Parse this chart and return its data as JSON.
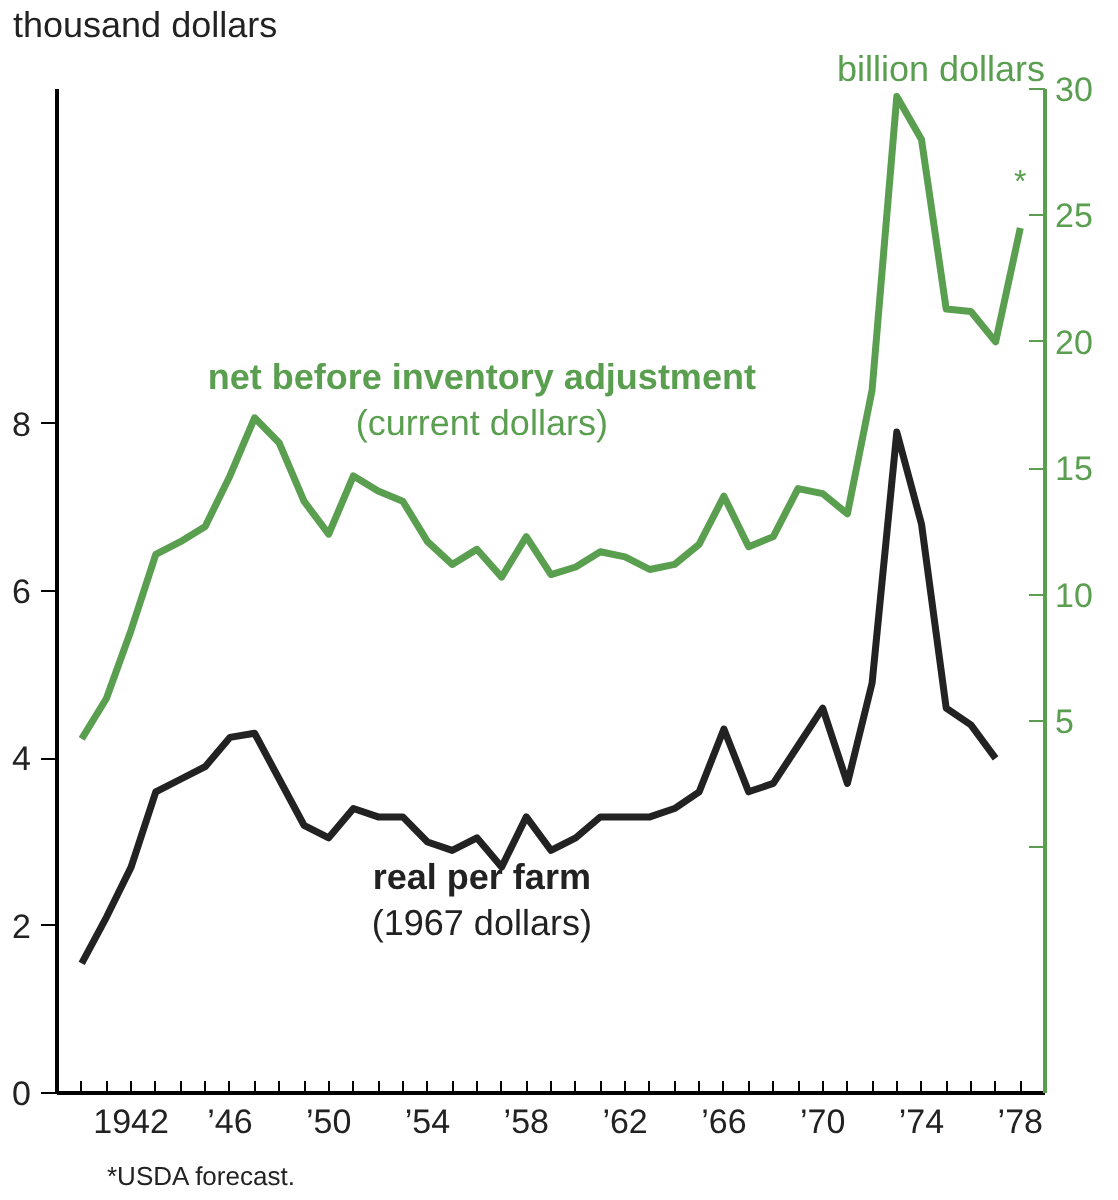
{
  "chart_data": {
    "type": "line",
    "ylabel": "thousand dollars",
    "y2label": "billion dollars",
    "series": [
      {
        "name": "real per farm\n(1967 dollars)",
        "color": "#222222",
        "x": [
          1940,
          1941,
          1942,
          1943,
          1944,
          1945,
          1946,
          1947,
          1948,
          1949,
          1950,
          1951,
          1952,
          1953,
          1954,
          1955,
          1956,
          1957,
          1958,
          1959,
          1960,
          1961,
          1962,
          1963,
          1964,
          1965,
          1966,
          1967,
          1968,
          1969,
          1970,
          1971,
          1972,
          1973,
          1974,
          1975,
          1976,
          1977
        ],
        "values": [
          1.55,
          2.1,
          2.7,
          3.6,
          3.75,
          3.9,
          4.25,
          4.3,
          3.75,
          3.2,
          3.05,
          3.4,
          3.3,
          3.3,
          3.0,
          2.9,
          3.05,
          2.7,
          3.3,
          2.9,
          3.05,
          3.3,
          3.3,
          3.3,
          3.4,
          3.6,
          4.35,
          3.6,
          3.7,
          4.15,
          4.6,
          3.7,
          4.9,
          7.9,
          6.8,
          4.6,
          4.4,
          4.0
        ]
      },
      {
        "name": "net before inventory adjustment\n(current dollars)",
        "color": "#5a9e50",
        "axis": "y2",
        "x": [
          1940,
          1941,
          1942,
          1943,
          1944,
          1945,
          1946,
          1947,
          1948,
          1949,
          1950,
          1951,
          1952,
          1953,
          1954,
          1955,
          1956,
          1957,
          1958,
          1959,
          1960,
          1961,
          1962,
          1963,
          1964,
          1965,
          1966,
          1967,
          1968,
          1969,
          1970,
          1971,
          1972,
          1973,
          1974,
          1975,
          1976,
          1977,
          1978
        ],
        "values": [
          4.3,
          5.9,
          8.6,
          11.6,
          12.1,
          12.7,
          14.7,
          17.0,
          16.0,
          13.7,
          12.4,
          14.7,
          14.1,
          13.7,
          12.1,
          11.2,
          11.8,
          10.7,
          12.3,
          10.8,
          11.1,
          11.7,
          11.5,
          11.0,
          11.2,
          12.0,
          13.9,
          11.9,
          12.3,
          14.2,
          14.0,
          13.2,
          18.1,
          29.7,
          28.0,
          21.3,
          21.2,
          20.0,
          24.5
        ]
      }
    ],
    "xlim": [
      1939,
      1979
    ],
    "xticks": [
      {
        "value": 1940,
        "label": null
      },
      {
        "value": 1941,
        "label": null
      },
      1942,
      {
        "value": 1943,
        "label": null
      },
      {
        "value": 1944,
        "label": null
      },
      {
        "value": 1945,
        "label": null
      },
      {
        "value": 1946,
        "label": "’46"
      },
      {
        "value": 1947,
        "label": null
      },
      {
        "value": 1948,
        "label": null
      },
      {
        "value": 1949,
        "label": null
      },
      {
        "value": 1950,
        "label": "’50"
      },
      {
        "value": 1951,
        "label": null
      },
      {
        "value": 1952,
        "label": null
      },
      {
        "value": 1953,
        "label": null
      },
      {
        "value": 1954,
        "label": "’54"
      },
      {
        "value": 1955,
        "label": null
      },
      {
        "value": 1956,
        "label": null
      },
      {
        "value": 1957,
        "label": null
      },
      {
        "value": 1958,
        "label": "’58"
      },
      {
        "value": 1959,
        "label": null
      },
      {
        "value": 1960,
        "label": null
      },
      {
        "value": 1961,
        "label": null
      },
      {
        "value": 1962,
        "label": "’62"
      },
      {
        "value": 1963,
        "label": null
      },
      {
        "value": 1964,
        "label": null
      },
      {
        "value": 1965,
        "label": null
      },
      {
        "value": 1966,
        "label": "’66"
      },
      {
        "value": 1967,
        "label": null
      },
      {
        "value": 1968,
        "label": null
      },
      {
        "value": 1969,
        "label": null
      },
      {
        "value": 1970,
        "label": "’70"
      },
      {
        "value": 1971,
        "label": null
      },
      {
        "value": 1972,
        "label": null
      },
      {
        "value": 1973,
        "label": null
      },
      {
        "value": 1974,
        "label": "’74"
      },
      {
        "value": 1975,
        "label": null
      },
      {
        "value": 1976,
        "label": null
      },
      {
        "value": 1977,
        "label": null
      },
      {
        "value": 1978,
        "label": "’78"
      }
    ],
    "ylim": [
      0,
      12
    ],
    "yticks": [
      0,
      2,
      4,
      6,
      8
    ],
    "y2lim": [
      -9.7,
      30
    ],
    "y2ticks": [
      {
        "value": 0,
        "label": null
      },
      5,
      10,
      15,
      20,
      25,
      30
    ],
    "annotations": [
      "*",
      "*USDA forecast."
    ],
    "grid": false,
    "legend": false,
    "marker": "none",
    "line_style": "solid"
  }
}
